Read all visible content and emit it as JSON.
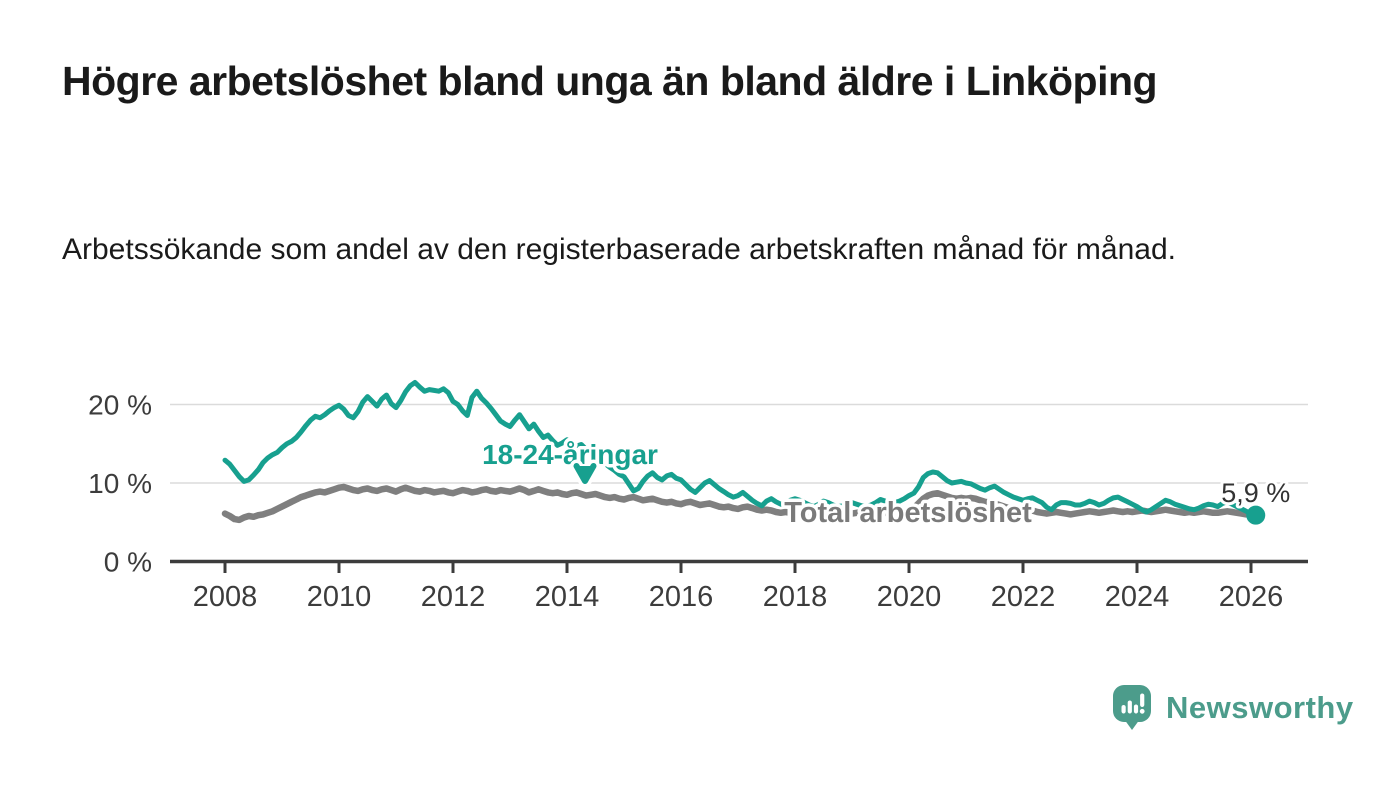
{
  "title": "Högre arbetslöshet bland unga än bland äldre i Linköping",
  "subtitle": "Arbetssökande som andel av den registerbaserade arbetskraften månad för månad.",
  "branding": {
    "name": "Newsworthy",
    "logo_icon": "speech-bubble-bar-chart-icon",
    "color": "#4c9c8b"
  },
  "colors": {
    "youth_line": "#17a08f",
    "total_line": "#7f7f7f",
    "grid": "#dbdbdb",
    "axis": "#3c3c3c",
    "text": "#1a1a1a"
  },
  "chart_data": {
    "type": "line",
    "title": "Högre arbetslöshet bland unga än bland äldre i Linköping",
    "subtitle": "Arbetssökande som andel av den registerbaserade arbetskraften månad för månad.",
    "unit": "%",
    "frequency": "monthly",
    "start": {
      "year": 2008,
      "month": 1
    },
    "end": {
      "year": 2026,
      "month": 2
    },
    "x_axis": {
      "ticks": [
        2008,
        2010,
        2012,
        2014,
        2016,
        2018,
        2020,
        2022,
        2024,
        2026
      ]
    },
    "y_axis": {
      "tick_values": [
        0,
        10,
        20
      ],
      "tick_labels": [
        "0 %",
        "10 %",
        "20 %"
      ],
      "range": [
        0,
        24
      ]
    },
    "grid": "horizontal-only",
    "legend": "inline-annotations",
    "end_label": "5,9 %",
    "end_value": 5.9,
    "series": [
      {
        "name": "18-24-åringar",
        "color": "#17a08f",
        "values": [
          12.9,
          12.4,
          11.6,
          10.8,
          10.2,
          10.4,
          11.0,
          11.7,
          12.6,
          13.2,
          13.6,
          13.9,
          14.5,
          15.0,
          15.3,
          15.8,
          16.5,
          17.3,
          18.0,
          18.5,
          18.3,
          18.7,
          19.2,
          19.6,
          19.9,
          19.4,
          18.6,
          18.3,
          19.1,
          20.3,
          21.0,
          20.4,
          19.8,
          20.7,
          21.2,
          20.1,
          19.6,
          20.5,
          21.6,
          22.4,
          22.8,
          22.2,
          21.7,
          21.9,
          21.8,
          21.7,
          22.0,
          21.5,
          20.4,
          20.0,
          19.2,
          18.6,
          20.9,
          21.7,
          20.8,
          20.2,
          19.5,
          18.7,
          17.9,
          17.5,
          17.2,
          18.0,
          18.7,
          17.8,
          16.9,
          17.5,
          16.6,
          15.8,
          16.1,
          15.4,
          14.8,
          15.1,
          15.5,
          15.1,
          14.7,
          14.9,
          14.3,
          13.8,
          13.4,
          12.9,
          12.5,
          12.0,
          11.6,
          11.1,
          10.8,
          9.9,
          9.0,
          9.3,
          10.2,
          10.9,
          11.3,
          10.7,
          10.4,
          10.9,
          11.1,
          10.6,
          10.4,
          9.8,
          9.2,
          8.8,
          9.4,
          10.0,
          10.3,
          9.8,
          9.3,
          8.9,
          8.5,
          8.2,
          8.4,
          8.8,
          8.3,
          7.8,
          7.4,
          7.1,
          7.7,
          8.0,
          7.6,
          7.3,
          7.5,
          7.8,
          8.0,
          7.8,
          7.5,
          7.2,
          7.0,
          7.3,
          7.7,
          7.5,
          7.2,
          7.0,
          7.1,
          7.3,
          7.5,
          7.3,
          7.1,
          7.0,
          7.2,
          7.5,
          7.9,
          7.7,
          7.4,
          7.5,
          7.7,
          8.0,
          8.4,
          8.7,
          9.5,
          10.7,
          11.2,
          11.4,
          11.3,
          10.8,
          10.3,
          10.0,
          10.1,
          10.2,
          10.0,
          9.9,
          9.6,
          9.3,
          9.1,
          9.4,
          9.6,
          9.2,
          8.8,
          8.5,
          8.2,
          8.0,
          7.8,
          8.0,
          8.1,
          7.8,
          7.5,
          6.9,
          6.6,
          7.2,
          7.5,
          7.5,
          7.4,
          7.2,
          7.2,
          7.4,
          7.7,
          7.5,
          7.2,
          7.4,
          7.8,
          8.1,
          8.2,
          7.9,
          7.6,
          7.3,
          7.0,
          6.6,
          6.3,
          6.6,
          7.0,
          7.4,
          7.8,
          7.6,
          7.3,
          7.1,
          6.9,
          6.7,
          6.6,
          6.8,
          7.1,
          7.3,
          7.2,
          7.0,
          7.4,
          7.6,
          7.3,
          7.0,
          6.7,
          6.4,
          6.1,
          5.9
        ]
      },
      {
        "name": "Total arbetslöshet",
        "color": "#7f7f7f",
        "values": [
          6.1,
          5.8,
          5.4,
          5.3,
          5.6,
          5.8,
          5.7,
          5.9,
          6.0,
          6.2,
          6.4,
          6.7,
          7.0,
          7.3,
          7.6,
          7.9,
          8.2,
          8.4,
          8.6,
          8.8,
          8.9,
          8.8,
          9.0,
          9.2,
          9.4,
          9.5,
          9.3,
          9.1,
          9.0,
          9.2,
          9.3,
          9.1,
          9.0,
          9.2,
          9.3,
          9.1,
          8.9,
          9.2,
          9.4,
          9.2,
          9.0,
          8.9,
          9.1,
          9.0,
          8.8,
          8.9,
          9.0,
          8.8,
          8.7,
          8.9,
          9.1,
          9.0,
          8.8,
          8.9,
          9.1,
          9.2,
          9.0,
          8.9,
          9.1,
          9.0,
          8.9,
          9.1,
          9.3,
          9.1,
          8.8,
          9.0,
          9.2,
          9.0,
          8.8,
          8.7,
          8.8,
          8.6,
          8.5,
          8.7,
          8.8,
          8.6,
          8.4,
          8.5,
          8.6,
          8.4,
          8.2,
          8.1,
          8.2,
          8.0,
          7.9,
          8.1,
          8.2,
          8.0,
          7.8,
          7.9,
          8.0,
          7.8,
          7.6,
          7.5,
          7.6,
          7.4,
          7.3,
          7.5,
          7.6,
          7.4,
          7.2,
          7.3,
          7.4,
          7.2,
          7.0,
          6.9,
          7.0,
          6.8,
          6.7,
          6.9,
          7.0,
          6.8,
          6.6,
          6.5,
          6.6,
          6.5,
          6.3,
          6.2,
          6.3,
          6.2,
          6.1,
          6.3,
          6.4,
          6.2,
          6.0,
          6.1,
          6.2,
          6.1,
          5.9,
          5.8,
          5.9,
          6.0,
          6.1,
          6.2,
          6.3,
          6.2,
          6.1,
          6.2,
          6.3,
          6.2,
          6.1,
          6.2,
          6.3,
          6.4,
          6.6,
          6.8,
          7.4,
          8.0,
          8.4,
          8.6,
          8.7,
          8.5,
          8.3,
          8.1,
          8.0,
          8.1,
          8.0,
          8.1,
          8.0,
          7.8,
          7.6,
          7.5,
          7.4,
          7.2,
          7.0,
          6.8,
          6.7,
          6.6,
          6.5,
          6.6,
          6.5,
          6.3,
          6.2,
          6.1,
          6.2,
          6.3,
          6.2,
          6.1,
          6.0,
          6.1,
          6.2,
          6.3,
          6.4,
          6.3,
          6.2,
          6.3,
          6.4,
          6.5,
          6.4,
          6.3,
          6.4,
          6.3,
          6.4,
          6.5,
          6.4,
          6.3,
          6.4,
          6.5,
          6.6,
          6.5,
          6.4,
          6.3,
          6.2,
          6.3,
          6.2,
          6.3,
          6.4,
          6.3,
          6.2,
          6.2,
          6.3,
          6.4,
          6.3,
          6.2,
          6.1,
          6.0,
          6.0,
          6.0
        ]
      }
    ]
  }
}
